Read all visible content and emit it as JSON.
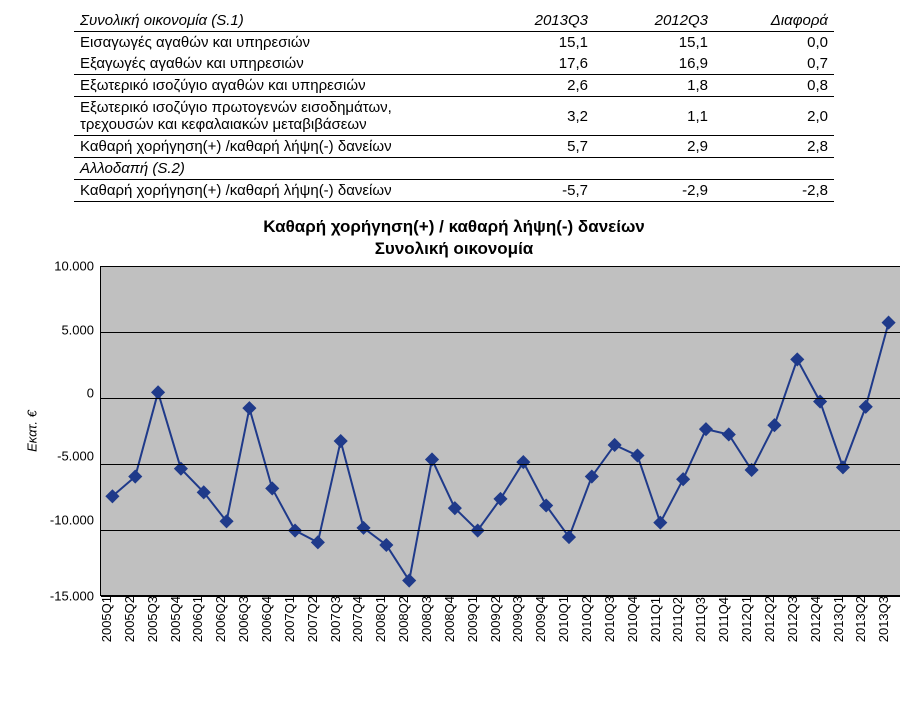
{
  "table": {
    "header": {
      "title": "Συνολική οικονομία (S.1)",
      "col1": "2013Q3",
      "col2": "2012Q3",
      "col3": "Διαφορά"
    },
    "rows": [
      {
        "label": "Εισαγωγές αγαθών και υπηρεσιών",
        "v1": "15,1",
        "v2": "15,1",
        "v3": "0,0",
        "cls": "b-top"
      },
      {
        "label": "Εξαγωγές αγαθών και υπηρεσιών",
        "v1": "17,6",
        "v2": "16,9",
        "v3": "0,7",
        "cls": "b-bot"
      },
      {
        "label": "Εξωτερικό ισοζύγιο αγαθών και υπηρεσιών",
        "v1": "2,6",
        "v2": "1,8",
        "v3": "0,8",
        "cls": "b-bot"
      },
      {
        "label": "Εξωτερικό ισοζύγιο πρωτογενών εισοδημάτων, τρεχουσών και κεφαλαιακών μεταβιβάσεων",
        "v1": "3,2",
        "v2": "1,1",
        "v3": "2,0",
        "cls": "b-bot"
      },
      {
        "label": "Καθαρή χορήγηση(+) /καθαρή λήψη(-) δανείων",
        "v1": "5,7",
        "v2": "2,9",
        "v3": "2,8",
        "cls": "b-bot"
      }
    ],
    "section2": "Αλλοδαπή (S.2)",
    "row_s2": {
      "label": "Καθαρή χορήγηση(+) /καθαρή λήψη(-) δανείων",
      "v1": "-5,7",
      "v2": "-2,9",
      "v3": "-2,8"
    }
  },
  "chart": {
    "type": "line",
    "title_line1": "Καθαρή χορήγηση(+) / καθαρή λήψη(-) δανείων",
    "title_line2": "Συνολική οικονομία",
    "ylabel": "Εκατ. €",
    "ylim": [
      -15000,
      10000
    ],
    "ytick_step": 5000,
    "ytick_labels": [
      "10.000",
      "5.000",
      "0",
      "-5.000",
      "-10.000",
      "-15.000"
    ],
    "line_color": "#1f3a8a",
    "marker_color": "#1f3a8a",
    "marker_size": 5,
    "line_width": 2,
    "background_color": "#c0c0c0",
    "grid_color": "#000000",
    "categories": [
      "2005Q1",
      "2005Q2",
      "2005Q3",
      "2005Q4",
      "2006Q1",
      "2006Q2",
      "2006Q3",
      "2006Q4",
      "2007Q1",
      "2007Q2",
      "2007Q3",
      "2007Q4",
      "2008Q1",
      "2008Q2",
      "2008Q3",
      "2008Q4",
      "2009Q1",
      "2009Q2",
      "2009Q3",
      "2009Q4",
      "2010Q1",
      "2010Q2",
      "2010Q3",
      "2010Q4",
      "2011Q1",
      "2011Q2",
      "2011Q3",
      "2011Q4",
      "2012Q1",
      "2012Q2",
      "2012Q3",
      "2012Q4",
      "2013Q1",
      "2013Q2",
      "2013Q3"
    ],
    "values": [
      -7500,
      -6000,
      400,
      -5400,
      -7200,
      -9400,
      -800,
      -6900,
      -10100,
      -11000,
      -3300,
      -9900,
      -11200,
      -13900,
      -4700,
      -8400,
      -10100,
      -7700,
      -4900,
      -8200,
      -10600,
      -6000,
      -3600,
      -4400,
      -9500,
      -6200,
      -2400,
      -2800,
      -5500,
      -2100,
      2900,
      -300,
      -5300,
      -700,
      5700
    ]
  }
}
